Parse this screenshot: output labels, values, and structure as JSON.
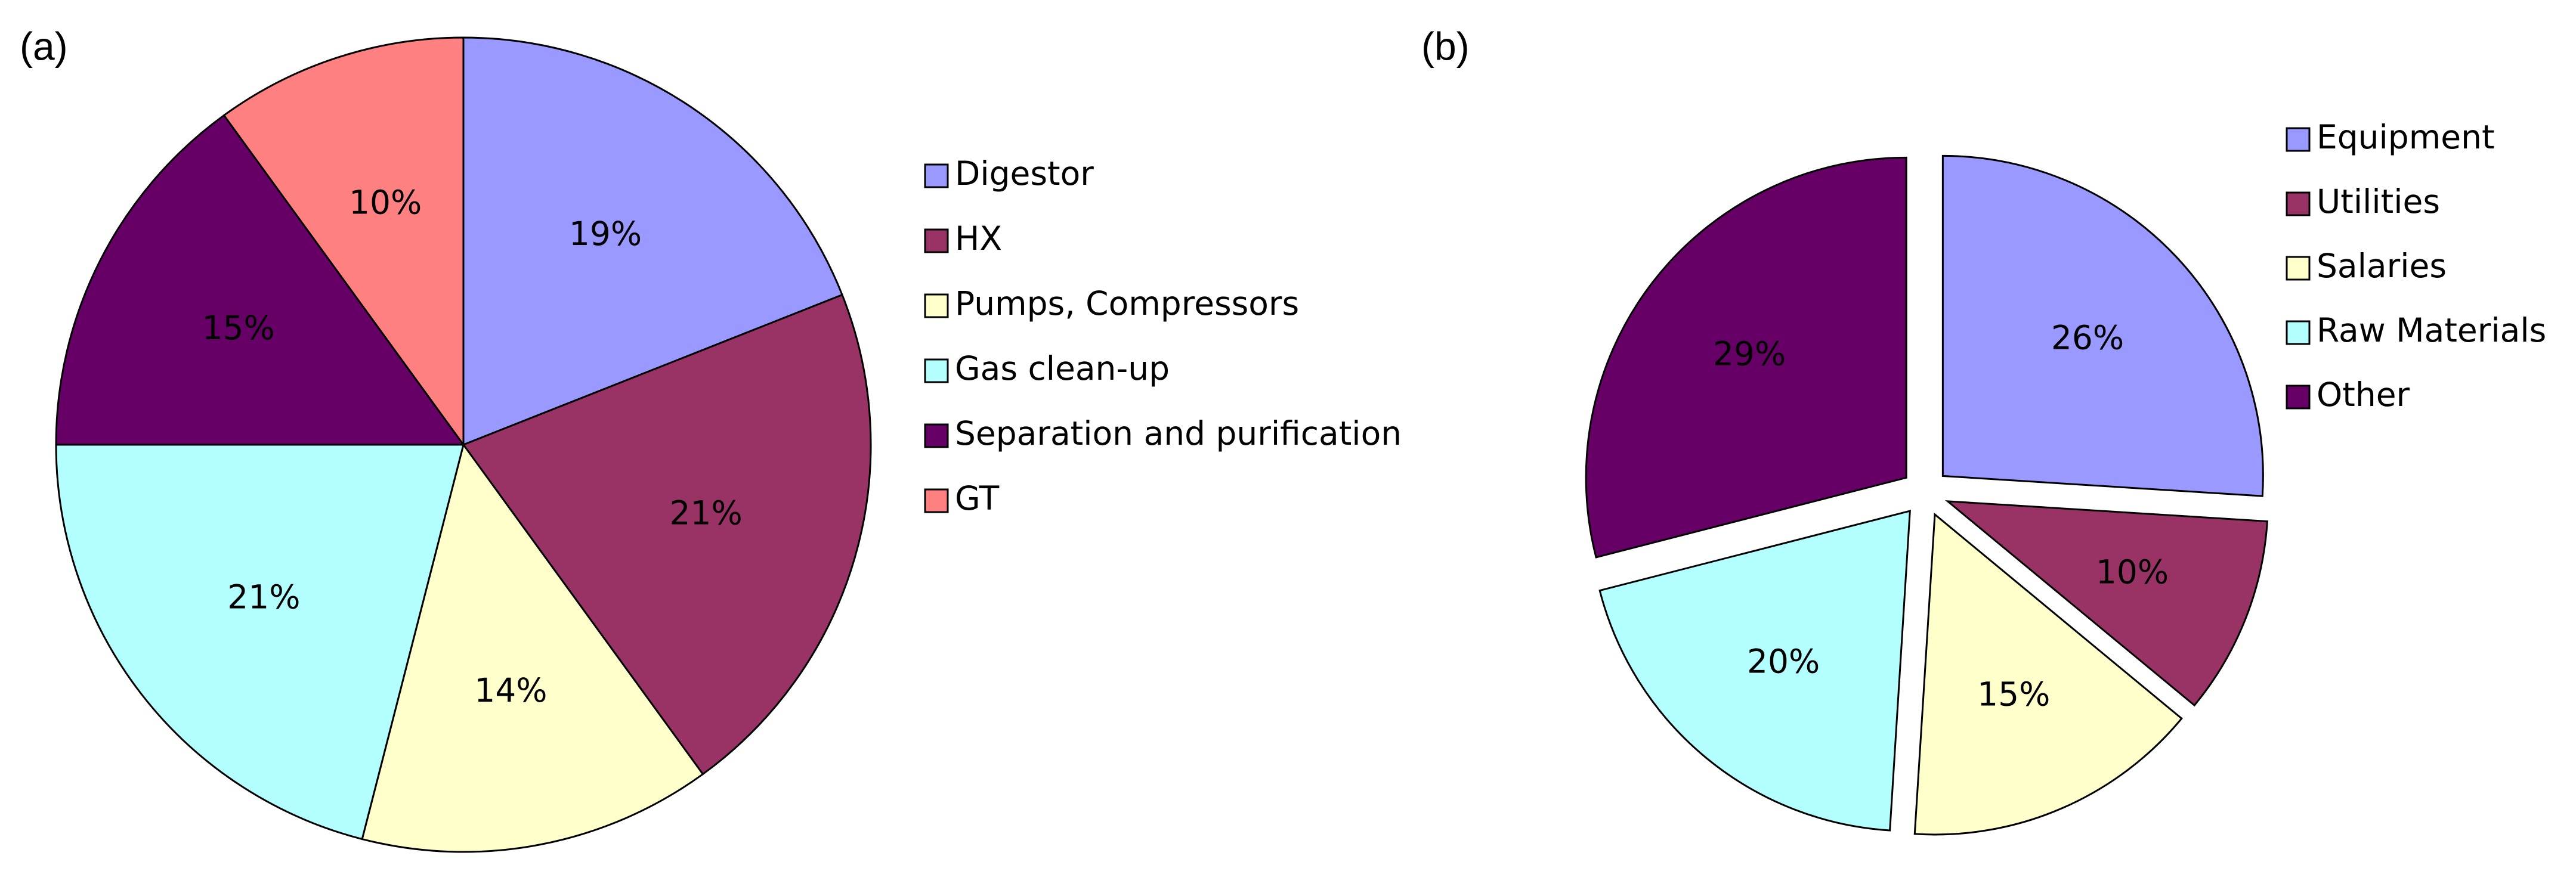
{
  "chart_data": [
    {
      "type": "pie",
      "panel_label": "(a)",
      "categories": [
        "Digestor",
        "HX",
        "Pumps, Compressors",
        "Gas clean-up",
        "Separation and purification",
        "GT"
      ],
      "values": [
        19,
        21,
        14,
        21,
        15,
        10
      ],
      "value_labels": [
        "19%",
        "21%",
        "14%",
        "21%",
        "15%",
        "10%"
      ],
      "colors": [
        "#9999ff",
        "#993366",
        "#ffffcc",
        "#b3ffff",
        "#660066",
        "#ff8080"
      ],
      "exploded": false,
      "legend": "right"
    },
    {
      "type": "pie",
      "panel_label": "(b)",
      "categories": [
        "Equipment",
        "Utilities",
        "Salaries",
        "Raw Materials",
        "Other"
      ],
      "values": [
        26,
        10,
        15,
        20,
        29
      ],
      "value_labels": [
        "26%",
        "10%",
        "15%",
        "20%",
        "29%"
      ],
      "colors": [
        "#9999ff",
        "#993366",
        "#ffffcc",
        "#b3ffff",
        "#660066"
      ],
      "exploded": true,
      "legend": "right"
    }
  ]
}
